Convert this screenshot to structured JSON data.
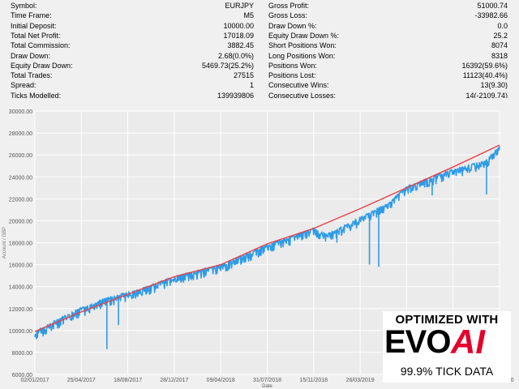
{
  "stats_left": [
    {
      "label": "Symbol:",
      "value": "EURJPY"
    },
    {
      "label": "Time Frame:",
      "value": "M5"
    },
    {
      "label": "Initial Deposit:",
      "value": "10000.00"
    },
    {
      "label": "Total Net Profit:",
      "value": "17018.09"
    },
    {
      "label": "Total Commission:",
      "value": "3882.45"
    },
    {
      "label": "Draw Down:",
      "value": "2.68(0.0%)"
    },
    {
      "label": "Equity Draw Down:",
      "value": "5469.73(25.2%)"
    },
    {
      "label": "Total Trades:",
      "value": "27515"
    },
    {
      "label": "Spread:",
      "value": "1"
    },
    {
      "label": "Ticks Modelled:",
      "value": "139939806"
    }
  ],
  "stats_right": [
    {
      "label": "Gross Profit:",
      "value": "51000.74"
    },
    {
      "label": "Gross Loss:",
      "value": "-33982.66"
    },
    {
      "label": "Draw Down %:",
      "value": "0.0"
    },
    {
      "label": "Equity Draw Down %:",
      "value": "25.2"
    },
    {
      "label": "Short Positions Won:",
      "value": "8074"
    },
    {
      "label": "Long Positions Won:",
      "value": "8318"
    },
    {
      "label": "Positions Won:",
      "value": "16392(59.6%)"
    },
    {
      "label": "Positions Lost:",
      "value": "11123(40.4%)"
    },
    {
      "label": "Consecutive Wins:",
      "value": "13(9.30)"
    },
    {
      "label": "Consecutive Losses:",
      "value": "14(-2109.74)"
    }
  ],
  "chart_data": {
    "type": "line",
    "xlabel": "Date",
    "ylabel": "Account / GBP",
    "ylim": [
      6000,
      30000
    ],
    "yticks": [
      "6000.00",
      "8000.00",
      "10000.00",
      "12000.00",
      "14000.00",
      "16000.00",
      "18000.00",
      "20000.00",
      "22000.00",
      "24000.00",
      "26000.00",
      "28000.00",
      "30000.00"
    ],
    "xticks": [
      "02/01/2017",
      "25/04/2017",
      "18/08/2017",
      "28/12/2017",
      "09/04/2018",
      "31/07/2018",
      "15/11/2018",
      "26/03/2019",
      "18/07/2019",
      "11/03/2020",
      "05/06/2020"
    ],
    "grid": true,
    "series": [
      {
        "color": "#e8404a",
        "x": [
          0,
          1,
          2,
          3,
          4,
          5,
          6,
          7,
          8,
          9,
          10
        ],
        "values": [
          9900,
          11700,
          13300,
          14900,
          16000,
          17900,
          19300,
          21100,
          23000,
          24900,
          26900
        ]
      },
      {
        "color": "#2e9be6",
        "x": [
          0,
          0.8,
          1.5,
          2.2,
          3,
          4,
          5,
          6,
          6.3,
          7.6,
          8,
          8.8,
          9.7,
          10
        ],
        "values": [
          9800,
          11600,
          12800,
          13600,
          14800,
          15900,
          17700,
          19200,
          18700,
          21500,
          23000,
          24300,
          25400,
          26700
        ]
      }
    ],
    "spikes": [
      {
        "x": 1.55,
        "value": 8300
      },
      {
        "x": 1.8,
        "value": 10500
      },
      {
        "x": 6.5,
        "value": 18000
      },
      {
        "x": 7.2,
        "value": 16000
      },
      {
        "x": 7.4,
        "value": 15800
      },
      {
        "x": 8.55,
        "value": 22300
      },
      {
        "x": 9.72,
        "value": 22400
      }
    ]
  },
  "logo": {
    "top": "OPTIMIZED WITH",
    "evo": "EVO",
    "ai": "AI",
    "bottom": "99.9% TICK DATA"
  },
  "colors": {
    "background": "#f0f0f0",
    "grid": "#ffffff",
    "balance": "#e8404a",
    "equity": "#2e9be6",
    "brand": "#e4002b"
  }
}
